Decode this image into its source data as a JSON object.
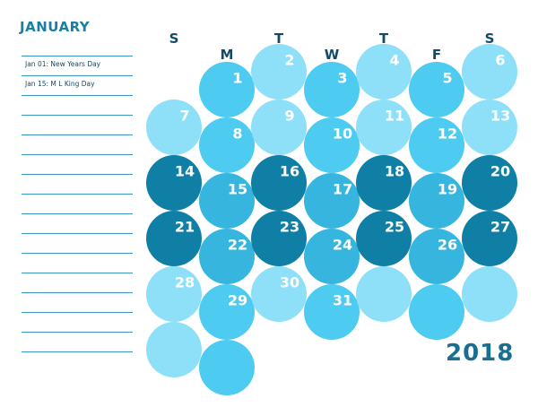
{
  "month": "JANUARY",
  "year": "2018",
  "weekdays": [
    "S",
    "M",
    "T",
    "W",
    "T",
    "F",
    "S"
  ],
  "notes": [
    {
      "text": "Jan 01: New Years Day"
    },
    {
      "text": "Jan 15: M L King Day"
    },
    {
      "text": ""
    },
    {
      "text": ""
    },
    {
      "text": ""
    },
    {
      "text": ""
    },
    {
      "text": ""
    },
    {
      "text": ""
    },
    {
      "text": ""
    },
    {
      "text": ""
    },
    {
      "text": ""
    },
    {
      "text": ""
    },
    {
      "text": ""
    },
    {
      "text": ""
    },
    {
      "text": ""
    },
    {
      "text": ""
    }
  ],
  "colors": {
    "light": "#8ee0f8",
    "medium": "#4ecbf0",
    "mid_dark": "#36b6de",
    "dark": "#0f7fa5",
    "title": "#1a7fa6"
  },
  "weeks": [
    [
      null,
      "1",
      "2",
      "3",
      "4",
      "5",
      "6"
    ],
    [
      "7",
      "8",
      "9",
      "10",
      "11",
      "12",
      "13"
    ],
    [
      "14",
      "15",
      "16",
      "17",
      "18",
      "19",
      "20"
    ],
    [
      "21",
      "22",
      "23",
      "24",
      "25",
      "26",
      "27"
    ],
    [
      "28",
      "29",
      "30",
      "31",
      "",
      "",
      ""
    ],
    [
      "",
      "",
      null,
      null,
      null,
      null,
      null
    ]
  ],
  "week_tone": [
    [
      "light",
      "medium",
      "light",
      "medium",
      "light",
      "medium",
      "light"
    ],
    [
      "light",
      "medium",
      "light",
      "medium",
      "light",
      "medium",
      "light"
    ],
    [
      "dark",
      "mid_dark",
      "dark",
      "mid_dark",
      "dark",
      "mid_dark",
      "dark"
    ],
    [
      "dark",
      "mid_dark",
      "dark",
      "mid_dark",
      "dark",
      "mid_dark",
      "dark"
    ],
    [
      "light",
      "medium",
      "light",
      "medium",
      "light",
      "medium",
      "light"
    ],
    [
      "light",
      "medium",
      null,
      null,
      null,
      null,
      null
    ]
  ]
}
